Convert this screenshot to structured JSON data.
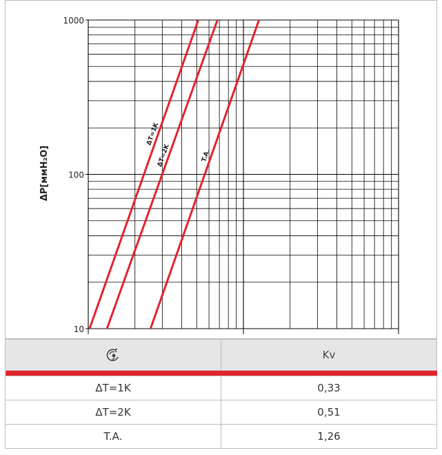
{
  "chart_data": {
    "type": "line",
    "title": "",
    "xlabel": "",
    "ylabel": "ΔP[ммH₂O]",
    "yscale": "log",
    "xscale": "log",
    "ylim": [
      10,
      1000
    ],
    "xlim": [
      10,
      100
    ],
    "y_ticks": [
      "10",
      "100",
      "1000"
    ],
    "grid": true,
    "line_color": "#e3222c",
    "series": [
      {
        "name": "ΔT=1K",
        "x": [
          10.2,
          51.2
        ],
        "y": [
          10,
          1000
        ]
      },
      {
        "name": "ΔT=2K",
        "x": [
          13.2,
          68.0
        ],
        "y": [
          10,
          1000
        ]
      },
      {
        "name": "T.A.",
        "x": [
          25.2,
          126.0
        ],
        "y": [
          10,
          1000
        ]
      }
    ]
  },
  "table": {
    "header": {
      "icon": "valve-icon",
      "kv_label": "Kv"
    },
    "rows": [
      {
        "label": "ΔT=1K",
        "value": "0,33"
      },
      {
        "label": "ΔT=2K",
        "value": "0,51"
      },
      {
        "label": "T.A.",
        "value": "1,26"
      }
    ]
  }
}
